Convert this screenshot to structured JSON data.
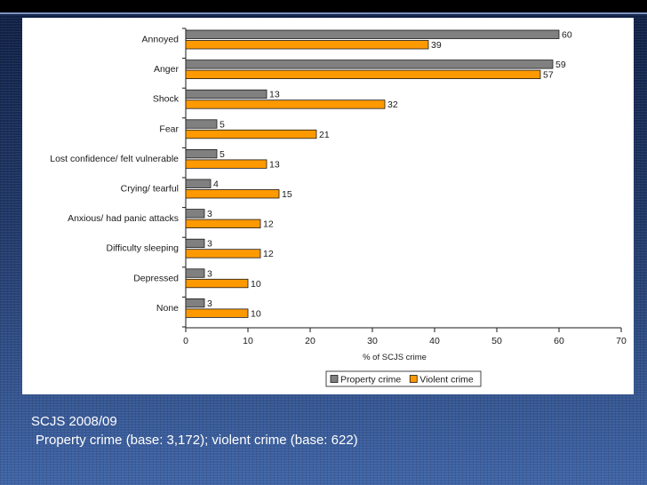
{
  "chart_data": {
    "type": "bar",
    "orientation": "horizontal",
    "categories": [
      "Annoyed",
      "Anger",
      "Shock",
      "Fear",
      "Lost confidence/ felt vulnerable",
      "Crying/ tearful",
      "Anxious/ had panic attacks",
      "Difficulty sleeping",
      "Depressed",
      "None"
    ],
    "series": [
      {
        "name": "Property crime",
        "values": [
          60,
          59,
          13,
          5,
          5,
          4,
          3,
          3,
          3,
          3
        ],
        "color": "#808080"
      },
      {
        "name": "Violent crime",
        "values": [
          39,
          57,
          32,
          21,
          13,
          15,
          12,
          12,
          10,
          10
        ],
        "color": "#ff9900"
      }
    ],
    "xlabel": "% of SCJS crime",
    "xlim": [
      0,
      70
    ],
    "xticks": [
      0,
      10,
      20,
      30,
      40,
      50,
      60,
      70
    ],
    "legend": "bottom-right",
    "grid": false
  },
  "footer": {
    "line1": "SCJS 2008/09",
    "line2": "Property crime (base: 3,172); violent crime (base: 622)"
  }
}
